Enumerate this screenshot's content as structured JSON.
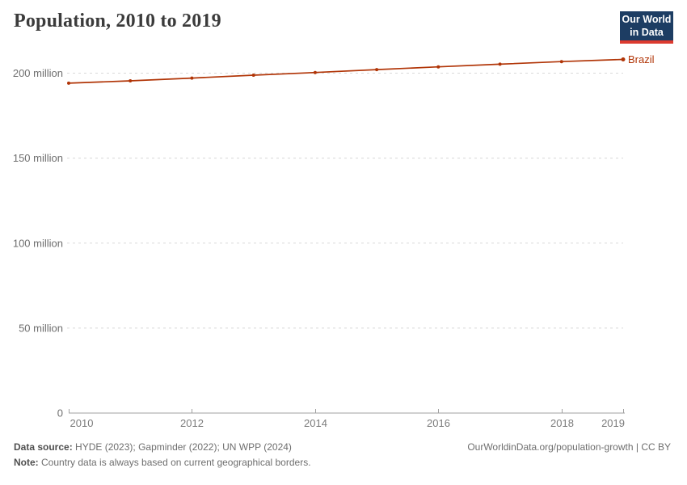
{
  "header": {
    "title": "Population, 2010 to 2019",
    "logo_line1": "Our World",
    "logo_line2": "in Data"
  },
  "colors": {
    "accent_red": "#b13507",
    "logo_navy": "#1d3d63",
    "logo_red": "#dc3a2f",
    "text_dark": "#3b3b3b",
    "axis_gray": "#a0a0a0",
    "grid_gray": "#d8d8d8"
  },
  "chart_data": {
    "type": "line",
    "title": "Population, 2010 to 2019",
    "entity": "Brazil",
    "unit": "people",
    "x": [
      2010,
      2011,
      2012,
      2013,
      2014,
      2015,
      2016,
      2017,
      2018,
      2019
    ],
    "series": [
      {
        "name": "Brazil",
        "color": "#b13507",
        "values_millions": [
          194.1,
          195.5,
          197.1,
          198.8,
          200.4,
          202.1,
          203.7,
          205.3,
          206.8,
          208.1
        ]
      }
    ],
    "x_ticks": [
      2010,
      2012,
      2014,
      2016,
      2018,
      2019
    ],
    "y_ticks": [
      {
        "value": 0,
        "label": "0"
      },
      {
        "value": 50,
        "label": "50 million"
      },
      {
        "value": 100,
        "label": "100 million"
      },
      {
        "value": 150,
        "label": "150 million"
      },
      {
        "value": 200,
        "label": "200 million"
      }
    ],
    "ylim": [
      0,
      215
    ],
    "grid": "horizontal-dashed",
    "legend_position": "line-end-label"
  },
  "footer": {
    "datasource_label": "Data source:",
    "datasource_text": " HYDE (2023); Gapminder (2022); UN WPP (2024)",
    "note_label": "Note:",
    "note_text": " Country data is always based on current geographical borders.",
    "link": "OurWorldinData.org/population-growth | CC BY"
  }
}
